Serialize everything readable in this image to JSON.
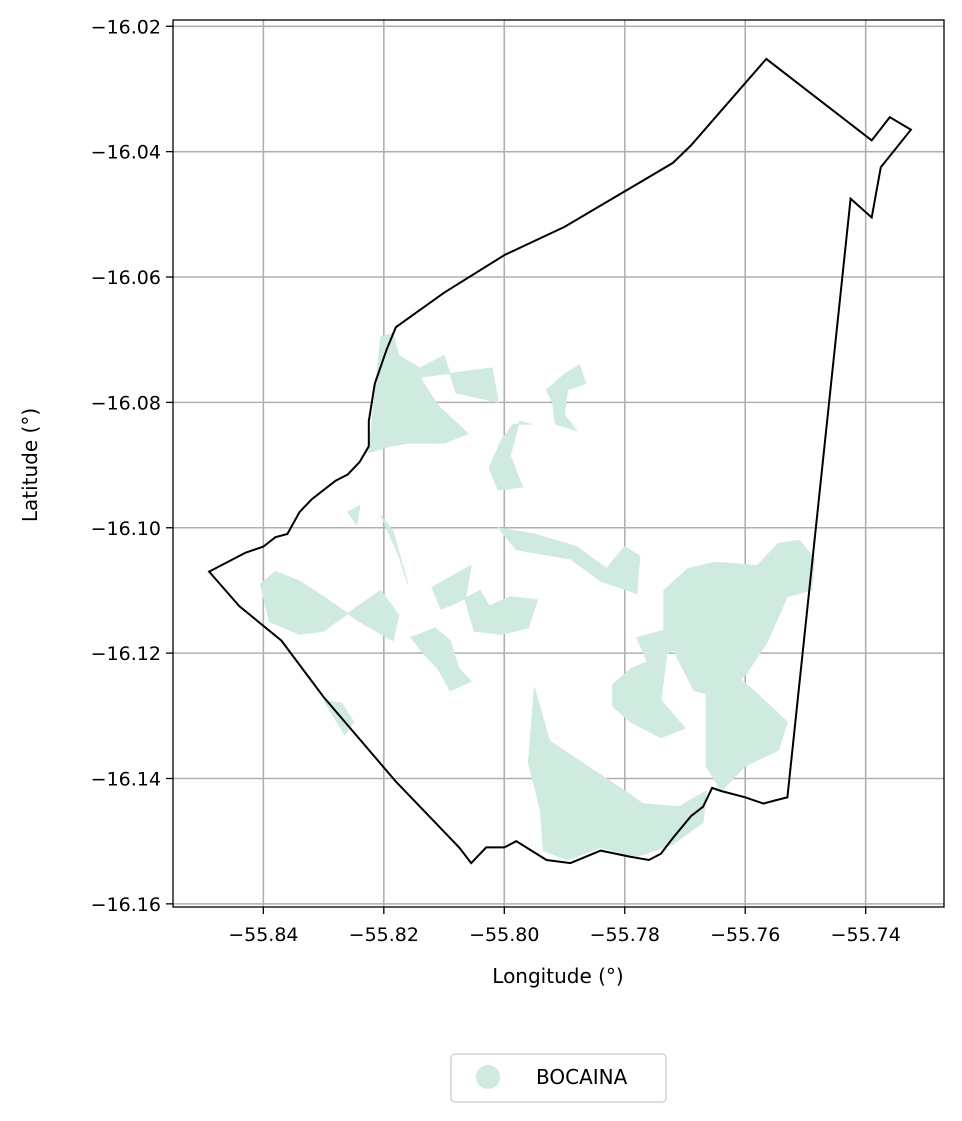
{
  "chart_data": {
    "type": "map",
    "xlabel": "Longitude (°)",
    "ylabel": "Latitude (°)",
    "xlim": [
      -55.855,
      -55.727
    ],
    "ylim": [
      -16.1605,
      -16.019
    ],
    "x_ticks": [
      -55.84,
      -55.82,
      -55.8,
      -55.78,
      -55.76,
      -55.74
    ],
    "y_ticks": [
      -16.02,
      -16.04,
      -16.06,
      -16.08,
      -16.1,
      -16.12,
      -16.14,
      -16.16
    ],
    "x_tick_labels": [
      "−55.84",
      "−55.82",
      "−55.80",
      "−55.78",
      "−55.76",
      "−55.74"
    ],
    "y_tick_labels": [
      "−16.02",
      "−16.04",
      "−16.06",
      "−16.08",
      "−16.10",
      "−16.12",
      "−16.14",
      "−16.16"
    ],
    "grid": true,
    "legend": {
      "placement": "bottom-center",
      "entries": [
        {
          "label": "BOCAINA",
          "color": "#cfeade"
        }
      ]
    },
    "colors": {
      "fill": "#cfeade",
      "boundary": "#000000",
      "grid": "#b0b0b0"
    },
    "boundary": [
      [
        -55.849,
        -16.107
      ],
      [
        -55.845,
        -16.105
      ],
      [
        -55.843,
        -16.104
      ],
      [
        -55.84,
        -16.103
      ],
      [
        -55.838,
        -16.1015
      ],
      [
        -55.836,
        -16.101
      ],
      [
        -55.834,
        -16.0975
      ],
      [
        -55.832,
        -16.0955
      ],
      [
        -55.83,
        -16.094
      ],
      [
        -55.828,
        -16.0925
      ],
      [
        -55.826,
        -16.0915
      ],
      [
        -55.824,
        -16.0895
      ],
      [
        -55.8225,
        -16.087
      ],
      [
        -55.8225,
        -16.083
      ],
      [
        -55.8215,
        -16.077
      ],
      [
        -55.8195,
        -16.0715
      ],
      [
        -55.818,
        -16.068
      ],
      [
        -55.81,
        -16.0625
      ],
      [
        -55.8,
        -16.0565
      ],
      [
        -55.79,
        -16.052
      ],
      [
        -55.772,
        -16.0418
      ],
      [
        -55.769,
        -16.039
      ],
      [
        -55.7565,
        -16.0252
      ],
      [
        -55.739,
        -16.0382
      ],
      [
        -55.736,
        -16.0345
      ],
      [
        -55.7325,
        -16.0365
      ],
      [
        -55.7375,
        -16.0425
      ],
      [
        -55.739,
        -16.0505
      ],
      [
        -55.7425,
        -16.0475
      ],
      [
        -55.753,
        -16.143
      ],
      [
        -55.755,
        -16.1435
      ],
      [
        -55.757,
        -16.144
      ],
      [
        -55.76,
        -16.143
      ],
      [
        -55.764,
        -16.142
      ],
      [
        -55.7655,
        -16.1415
      ],
      [
        -55.767,
        -16.1445
      ],
      [
        -55.769,
        -16.146
      ],
      [
        -55.772,
        -16.1495
      ],
      [
        -55.774,
        -16.152
      ],
      [
        -55.776,
        -16.153
      ],
      [
        -55.779,
        -16.1525
      ],
      [
        -55.784,
        -16.1515
      ],
      [
        -55.789,
        -16.1535
      ],
      [
        -55.793,
        -16.153
      ],
      [
        -55.798,
        -16.15
      ],
      [
        -55.8,
        -16.151
      ],
      [
        -55.803,
        -16.151
      ],
      [
        -55.8055,
        -16.1535
      ],
      [
        -55.8075,
        -16.151
      ],
      [
        -55.818,
        -16.1405
      ],
      [
        -55.83,
        -16.127
      ],
      [
        -55.837,
        -16.118
      ],
      [
        -55.844,
        -16.1125
      ],
      [
        -55.849,
        -16.107
      ]
    ],
    "features": [
      {
        "name": "BOCAINA",
        "coords": [
          [
            -55.8225,
            -16.088
          ],
          [
            -55.8205,
            -16.0695
          ],
          [
            -55.8185,
            -16.069
          ],
          [
            -55.8175,
            -16.0725
          ],
          [
            -55.814,
            -16.0745
          ],
          [
            -55.81,
            -16.0725
          ],
          [
            -55.808,
            -16.0785
          ],
          [
            -55.801,
            -16.08
          ],
          [
            -55.802,
            -16.0745
          ],
          [
            -55.814,
            -16.076
          ],
          [
            -55.811,
            -16.0805
          ],
          [
            -55.806,
            -16.085
          ],
          [
            -55.81,
            -16.0865
          ],
          [
            -55.816,
            -16.0865
          ],
          [
            -55.819,
            -16.087
          ]
        ]
      },
      {
        "name": "BOCAINA",
        "coords": [
          [
            -55.7955,
            -16.0835
          ],
          [
            -55.7975,
            -16.083
          ],
          [
            -55.799,
            -16.0885
          ],
          [
            -55.797,
            -16.0935
          ],
          [
            -55.801,
            -16.094
          ],
          [
            -55.8025,
            -16.0905
          ],
          [
            -55.8005,
            -16.086
          ],
          [
            -55.7985,
            -16.0835
          ]
        ]
      },
      {
        "name": "BOCAINA",
        "coords": [
          [
            -55.793,
            -16.078
          ],
          [
            -55.79,
            -16.0755
          ],
          [
            -55.7875,
            -16.074
          ],
          [
            -55.7865,
            -16.077
          ],
          [
            -55.7895,
            -16.078
          ],
          [
            -55.79,
            -16.082
          ],
          [
            -55.788,
            -16.0845
          ],
          [
            -55.7915,
            -16.0835
          ],
          [
            -55.792,
            -16.08
          ]
        ]
      },
      {
        "name": "BOCAINA",
        "coords": [
          [
            -55.826,
            -16.0975
          ],
          [
            -55.824,
            -16.0965
          ],
          [
            -55.8245,
            -16.0995
          ]
        ]
      },
      {
        "name": "BOCAINA",
        "coords": [
          [
            -55.8405,
            -16.109
          ],
          [
            -55.838,
            -16.107
          ],
          [
            -55.834,
            -16.1085
          ],
          [
            -55.83,
            -16.111
          ],
          [
            -55.824,
            -16.115
          ],
          [
            -55.8185,
            -16.118
          ],
          [
            -55.8175,
            -16.114
          ],
          [
            -55.8205,
            -16.11
          ],
          [
            -55.825,
            -16.113
          ],
          [
            -55.83,
            -16.1165
          ],
          [
            -55.834,
            -16.117
          ],
          [
            -55.839,
            -16.115
          ],
          [
            -55.84,
            -16.111
          ]
        ]
      },
      {
        "name": "BOCAINA",
        "coords": [
          [
            -55.812,
            -16.1095
          ],
          [
            -55.8055,
            -16.106
          ],
          [
            -55.8065,
            -16.1115
          ],
          [
            -55.805,
            -16.1165
          ],
          [
            -55.8005,
            -16.117
          ],
          [
            -55.796,
            -16.116
          ],
          [
            -55.7945,
            -16.1115
          ],
          [
            -55.799,
            -16.111
          ],
          [
            -55.8025,
            -16.1125
          ],
          [
            -55.804,
            -16.11
          ],
          [
            -55.808,
            -16.112
          ],
          [
            -55.8105,
            -16.113
          ]
        ]
      },
      {
        "name": "BOCAINA",
        "coords": [
          [
            -55.801,
            -16.1
          ],
          [
            -55.798,
            -16.1035
          ],
          [
            -55.789,
            -16.105
          ],
          [
            -55.784,
            -16.1085
          ],
          [
            -55.778,
            -16.1105
          ],
          [
            -55.7775,
            -16.1045
          ],
          [
            -55.78,
            -16.103
          ],
          [
            -55.783,
            -16.1065
          ],
          [
            -55.788,
            -16.103
          ],
          [
            -55.795,
            -16.101
          ]
        ]
      },
      {
        "name": "BOCAINA",
        "coords": [
          [
            -55.8155,
            -16.1175
          ],
          [
            -55.8115,
            -16.116
          ],
          [
            -55.809,
            -16.118
          ],
          [
            -55.8075,
            -16.1225
          ],
          [
            -55.8055,
            -16.1245
          ],
          [
            -55.809,
            -16.126
          ],
          [
            -55.811,
            -16.1225
          ],
          [
            -55.8135,
            -16.12
          ]
        ]
      },
      {
        "name": "BOCAINA",
        "coords": [
          [
            -55.795,
            -16.1255
          ],
          [
            -55.7925,
            -16.134
          ],
          [
            -55.78,
            -16.142
          ],
          [
            -55.777,
            -16.144
          ],
          [
            -55.771,
            -16.1445
          ],
          [
            -55.7665,
            -16.142
          ],
          [
            -55.767,
            -16.147
          ],
          [
            -55.772,
            -16.1505
          ],
          [
            -55.778,
            -16.1525
          ],
          [
            -55.784,
            -16.151
          ],
          [
            -55.7895,
            -16.153
          ],
          [
            -55.7935,
            -16.1515
          ],
          [
            -55.794,
            -16.145
          ],
          [
            -55.796,
            -16.1375
          ]
        ]
      },
      {
        "name": "BOCAINA",
        "coords": [
          [
            -55.7735,
            -16.11
          ],
          [
            -55.7695,
            -16.1065
          ],
          [
            -55.765,
            -16.1055
          ],
          [
            -55.758,
            -16.106
          ],
          [
            -55.7545,
            -16.1025
          ],
          [
            -55.751,
            -16.102
          ],
          [
            -55.7485,
            -16.105
          ],
          [
            -55.749,
            -16.11
          ],
          [
            -55.753,
            -16.111
          ],
          [
            -55.7565,
            -16.1185
          ],
          [
            -55.76,
            -16.1235
          ],
          [
            -55.764,
            -16.127
          ],
          [
            -55.7685,
            -16.126
          ],
          [
            -55.7735,
            -16.1165
          ]
        ]
      },
      {
        "name": "BOCAINA",
        "coords": [
          [
            -55.778,
            -16.1175
          ],
          [
            -55.772,
            -16.116
          ],
          [
            -55.769,
            -16.12
          ],
          [
            -55.7665,
            -16.126
          ],
          [
            -55.7665,
            -16.138
          ],
          [
            -55.764,
            -16.142
          ],
          [
            -55.76,
            -16.138
          ],
          [
            -55.7545,
            -16.1355
          ],
          [
            -55.753,
            -16.131
          ],
          [
            -55.758,
            -16.1265
          ],
          [
            -55.764,
            -16.1215
          ],
          [
            -55.772,
            -16.1195
          ],
          [
            -55.776,
            -16.122
          ]
        ]
      },
      {
        "name": "BOCAINA",
        "coords": [
          [
            -55.782,
            -16.125
          ],
          [
            -55.779,
            -16.1225
          ],
          [
            -55.773,
            -16.12
          ],
          [
            -55.774,
            -16.1275
          ],
          [
            -55.77,
            -16.132
          ],
          [
            -55.774,
            -16.1335
          ],
          [
            -55.779,
            -16.131
          ],
          [
            -55.782,
            -16.1285
          ]
        ]
      },
      {
        "name": "BOCAINA",
        "coords": [
          [
            -55.83,
            -16.1275
          ],
          [
            -55.827,
            -16.128
          ],
          [
            -55.825,
            -16.131
          ],
          [
            -55.8265,
            -16.133
          ]
        ]
      },
      {
        "name": "BOCAINA",
        "coords": [
          [
            -55.8185,
            -16.1005
          ],
          [
            -55.8205,
            -16.098
          ],
          [
            -55.8175,
            -16.1045
          ],
          [
            -55.816,
            -16.109
          ]
        ]
      }
    ]
  }
}
